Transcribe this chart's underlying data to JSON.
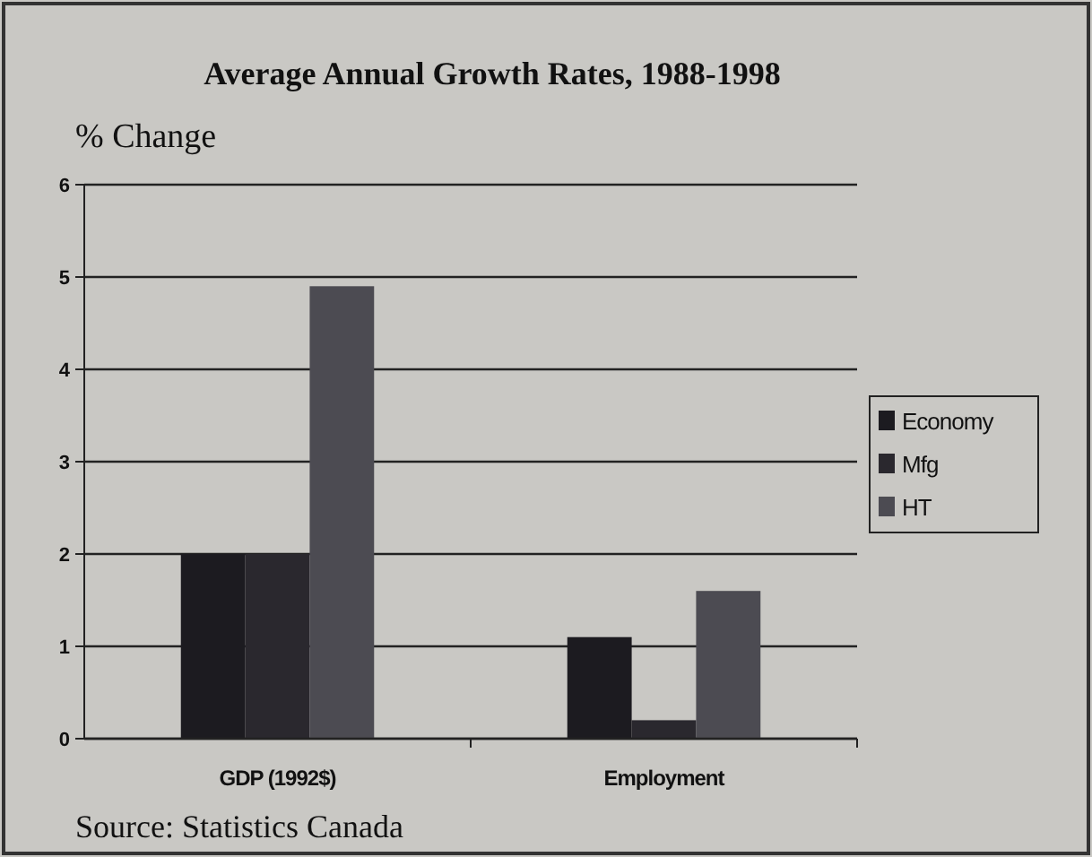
{
  "chart_data": {
    "type": "bar",
    "title": "Average Annual Growth Rates, 1988-1998",
    "ylabel": "% Change",
    "categories": [
      "GDP (1992$)",
      "Employment"
    ],
    "series": [
      {
        "name": "Economy",
        "color": "#1c1b20",
        "values": [
          2.0,
          1.1
        ]
      },
      {
        "name": "Mfg",
        "color": "#2a282e",
        "values": [
          2.0,
          0.2
        ]
      },
      {
        "name": "HT",
        "color": "#4c4b52",
        "values": [
          4.9,
          1.6
        ]
      }
    ],
    "ylim": [
      0,
      6
    ],
    "yticks": [
      0,
      1,
      2,
      3,
      4,
      5,
      6
    ],
    "grid": "y",
    "legend": "right",
    "annotations": [
      "Source: Statistics Canada"
    ]
  }
}
